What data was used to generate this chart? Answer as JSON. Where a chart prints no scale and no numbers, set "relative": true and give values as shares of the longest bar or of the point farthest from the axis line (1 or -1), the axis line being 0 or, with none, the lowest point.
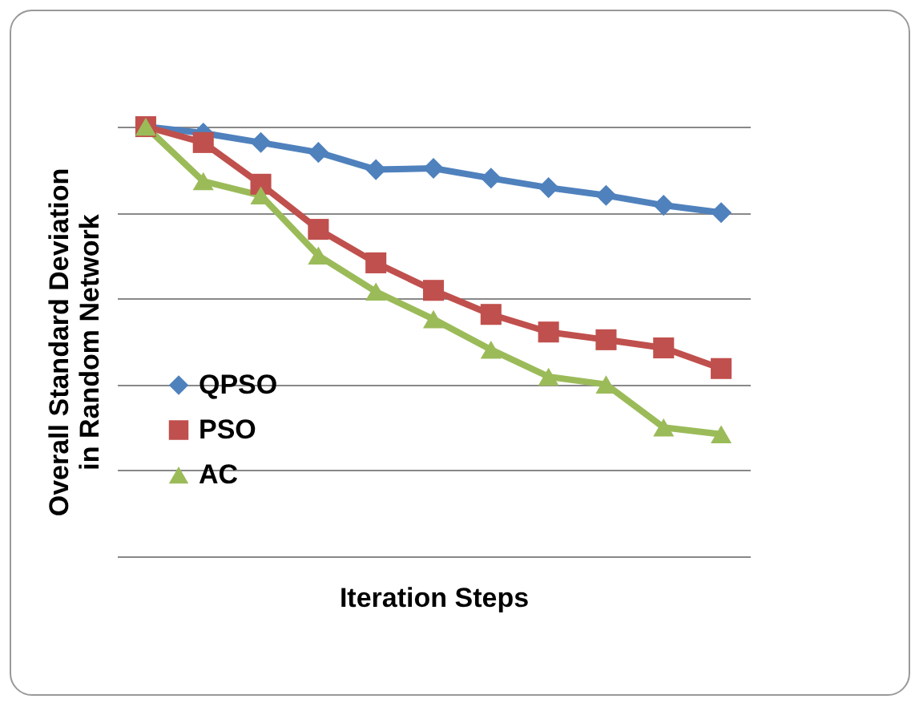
{
  "chart_data": {
    "type": "line",
    "relative": true,
    "xlabel": "Iteration Steps",
    "ylabel": "Overall Standard Deviation in Random Network",
    "categories": [
      null,
      null,
      null,
      null,
      null,
      null,
      null,
      null,
      null,
      null,
      null
    ],
    "series": [
      {
        "name": "QPSO",
        "color": "#4f81bd",
        "marker": "diamond",
        "values": [
          1,
          0.985,
          0.963,
          0.94,
          0.9,
          0.903,
          0.88,
          0.858,
          0.84,
          0.817,
          0.8
        ]
      },
      {
        "name": "PSO",
        "color": "#c0504d",
        "marker": "square",
        "values": [
          1,
          0.963,
          0.866,
          0.761,
          0.683,
          0.619,
          0.563,
          0.522,
          0.504,
          0.485,
          0.437
        ]
      },
      {
        "name": "AC",
        "color": "#9bbb59",
        "marker": "triangle",
        "values": [
          1,
          0.873,
          0.84,
          0.7,
          0.616,
          0.552,
          0.481,
          0.418,
          0.4,
          0.3,
          0.284
        ]
      }
    ],
    "grid": "y",
    "legend": "left",
    "line_style": "solid"
  }
}
